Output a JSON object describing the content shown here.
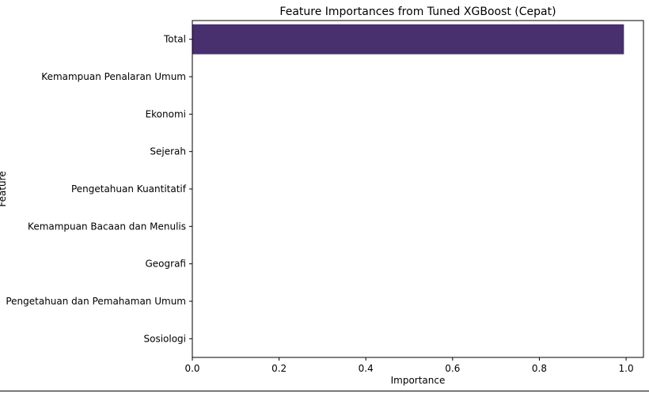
{
  "chart_data": {
    "type": "bar",
    "orientation": "horizontal",
    "title": "Feature Importances from Tuned XGBoost (Cepat)",
    "xlabel": "Importance",
    "ylabel": "Feature",
    "xlim": [
      0,
      1.04
    ],
    "xticks": [
      0.0,
      0.2,
      0.4,
      0.6,
      0.8,
      1.0
    ],
    "xtick_labels": [
      "0.0",
      "0.2",
      "0.4",
      "0.6",
      "0.8",
      "1.0"
    ],
    "grid": false,
    "bar_color": "#482f6e",
    "categories": [
      "Total",
      "Kemampuan Penalaran Umum",
      "Ekonomi",
      "Sejerah",
      "Pengetahuan Kuantitatif",
      "Kemampuan Bacaan dan Menulis",
      "Geografi",
      "Pengetahuan dan Pemahaman Umum",
      "Sosiologi"
    ],
    "values": [
      0.995,
      0.0,
      0.0,
      0.0,
      0.0,
      0.0,
      0.0,
      0.0,
      0.0
    ]
  }
}
